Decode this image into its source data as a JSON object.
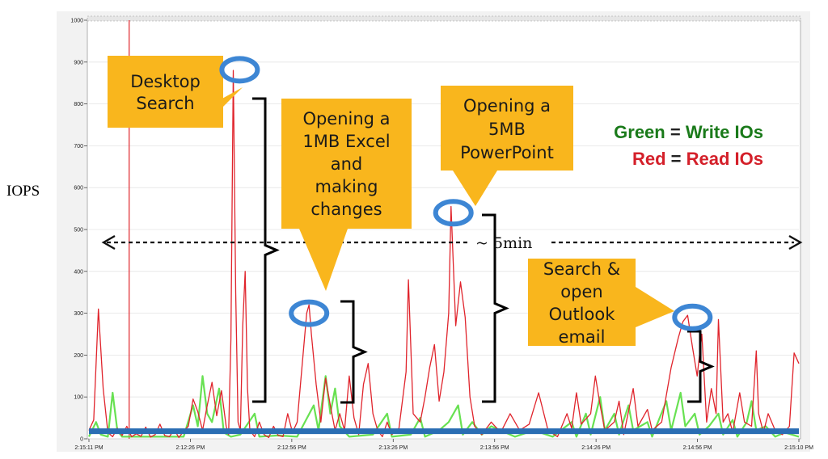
{
  "chart_data": {
    "type": "line",
    "ylabel": "IOPS",
    "ylim": [
      0,
      1000
    ],
    "yticks": [
      0,
      100,
      200,
      300,
      400,
      500,
      600,
      700,
      800,
      900,
      1000
    ],
    "xticks": [
      "2:15:11 PM",
      "2:12:26 PM",
      "2:12:56 PM",
      "2:13:26 PM",
      "2:13:56 PM",
      "2:14:26 PM",
      "2:14:56 PM",
      "2:15:10 PM"
    ],
    "xrange": [
      0,
      300
    ],
    "grid": true,
    "marker_line_t": 17,
    "baseline_value": 18,
    "series": [
      {
        "name": "Read IOs",
        "color": "#e0242c",
        "points": [
          [
            0,
            20
          ],
          [
            2,
            45
          ],
          [
            4,
            310
          ],
          [
            6,
            120
          ],
          [
            8,
            15
          ],
          [
            10,
            5
          ],
          [
            12,
            25
          ],
          [
            14,
            8
          ],
          [
            16,
            30
          ],
          [
            18,
            5
          ],
          [
            20,
            12
          ],
          [
            22,
            6
          ],
          [
            24,
            28
          ],
          [
            26,
            4
          ],
          [
            28,
            10
          ],
          [
            30,
            35
          ],
          [
            32,
            8
          ],
          [
            34,
            5
          ],
          [
            36,
            22
          ],
          [
            38,
            3
          ],
          [
            40,
            18
          ],
          [
            42,
            30
          ],
          [
            44,
            95
          ],
          [
            46,
            65
          ],
          [
            48,
            20
          ],
          [
            50,
            80
          ],
          [
            52,
            135
          ],
          [
            54,
            55
          ],
          [
            56,
            115
          ],
          [
            58,
            30
          ],
          [
            59,
            10
          ],
          [
            60,
            240
          ],
          [
            61,
            880
          ],
          [
            62,
            350
          ],
          [
            63,
            40
          ],
          [
            64,
            20
          ],
          [
            65,
            270
          ],
          [
            66,
            400
          ],
          [
            67,
            120
          ],
          [
            68,
            20
          ],
          [
            70,
            5
          ],
          [
            72,
            40
          ],
          [
            74,
            10
          ],
          [
            76,
            3
          ],
          [
            78,
            30
          ],
          [
            80,
            8
          ],
          [
            82,
            5
          ],
          [
            84,
            60
          ],
          [
            86,
            15
          ],
          [
            88,
            40
          ],
          [
            90,
            170
          ],
          [
            92,
            300
          ],
          [
            93,
            320
          ],
          [
            94,
            250
          ],
          [
            96,
            130
          ],
          [
            98,
            40
          ],
          [
            100,
            145
          ],
          [
            102,
            80
          ],
          [
            104,
            20
          ],
          [
            106,
            60
          ],
          [
            108,
            20
          ],
          [
            110,
            150
          ],
          [
            112,
            50
          ],
          [
            114,
            10
          ],
          [
            116,
            130
          ],
          [
            118,
            180
          ],
          [
            120,
            60
          ],
          [
            122,
            20
          ],
          [
            124,
            5
          ],
          [
            126,
            40
          ],
          [
            128,
            10
          ],
          [
            131,
            25
          ],
          [
            134,
            160
          ],
          [
            135,
            380
          ],
          [
            137,
            60
          ],
          [
            140,
            40
          ],
          [
            142,
            100
          ],
          [
            144,
            170
          ],
          [
            146,
            225
          ],
          [
            148,
            90
          ],
          [
            150,
            160
          ],
          [
            152,
            300
          ],
          [
            153,
            555
          ],
          [
            155,
            270
          ],
          [
            157,
            375
          ],
          [
            159,
            290
          ],
          [
            161,
            100
          ],
          [
            163,
            30
          ],
          [
            166,
            10
          ],
          [
            170,
            40
          ],
          [
            174,
            15
          ],
          [
            178,
            60
          ],
          [
            182,
            20
          ],
          [
            186,
            35
          ],
          [
            190,
            110
          ],
          [
            194,
            20
          ],
          [
            198,
            5
          ],
          [
            202,
            60
          ],
          [
            204,
            25
          ],
          [
            206,
            110
          ],
          [
            208,
            35
          ],
          [
            212,
            60
          ],
          [
            214,
            150
          ],
          [
            216,
            80
          ],
          [
            218,
            20
          ],
          [
            222,
            40
          ],
          [
            224,
            90
          ],
          [
            226,
            10
          ],
          [
            230,
            120
          ],
          [
            232,
            30
          ],
          [
            236,
            70
          ],
          [
            238,
            20
          ],
          [
            242,
            40
          ],
          [
            246,
            170
          ],
          [
            249,
            240
          ],
          [
            251,
            280
          ],
          [
            253,
            295
          ],
          [
            255,
            220
          ],
          [
            257,
            150
          ],
          [
            259,
            250
          ],
          [
            261,
            40
          ],
          [
            263,
            120
          ],
          [
            265,
            60
          ],
          [
            266,
            285
          ],
          [
            268,
            40
          ],
          [
            270,
            60
          ],
          [
            272,
            15
          ],
          [
            275,
            110
          ],
          [
            277,
            40
          ],
          [
            280,
            30
          ],
          [
            282,
            210
          ],
          [
            283,
            60
          ],
          [
            285,
            15
          ],
          [
            287,
            60
          ],
          [
            290,
            20
          ],
          [
            293,
            10
          ],
          [
            296,
            30
          ],
          [
            298,
            205
          ],
          [
            300,
            180
          ]
        ]
      },
      {
        "name": "Write IOs",
        "color": "#4ddc34",
        "points": [
          [
            0,
            5
          ],
          [
            3,
            40
          ],
          [
            5,
            10
          ],
          [
            8,
            5
          ],
          [
            10,
            110
          ],
          [
            12,
            20
          ],
          [
            14,
            5
          ],
          [
            20,
            5
          ],
          [
            30,
            5
          ],
          [
            40,
            5
          ],
          [
            44,
            80
          ],
          [
            46,
            30
          ],
          [
            48,
            150
          ],
          [
            50,
            60
          ],
          [
            52,
            40
          ],
          [
            55,
            120
          ],
          [
            57,
            15
          ],
          [
            60,
            5
          ],
          [
            64,
            10
          ],
          [
            70,
            60
          ],
          [
            72,
            5
          ],
          [
            80,
            8
          ],
          [
            88,
            5
          ],
          [
            95,
            80
          ],
          [
            97,
            20
          ],
          [
            100,
            150
          ],
          [
            102,
            60
          ],
          [
            104,
            120
          ],
          [
            106,
            30
          ],
          [
            110,
            5
          ],
          [
            120,
            10
          ],
          [
            126,
            60
          ],
          [
            128,
            5
          ],
          [
            136,
            10
          ],
          [
            140,
            50
          ],
          [
            142,
            5
          ],
          [
            148,
            20
          ],
          [
            152,
            40
          ],
          [
            156,
            80
          ],
          [
            158,
            10
          ],
          [
            162,
            40
          ],
          [
            166,
            10
          ],
          [
            170,
            30
          ],
          [
            180,
            5
          ],
          [
            188,
            20
          ],
          [
            196,
            5
          ],
          [
            204,
            40
          ],
          [
            206,
            5
          ],
          [
            210,
            60
          ],
          [
            212,
            10
          ],
          [
            216,
            100
          ],
          [
            218,
            20
          ],
          [
            222,
            60
          ],
          [
            224,
            10
          ],
          [
            228,
            80
          ],
          [
            230,
            20
          ],
          [
            236,
            40
          ],
          [
            238,
            5
          ],
          [
            244,
            90
          ],
          [
            246,
            20
          ],
          [
            250,
            110
          ],
          [
            252,
            30
          ],
          [
            256,
            60
          ],
          [
            258,
            10
          ],
          [
            262,
            30
          ],
          [
            266,
            60
          ],
          [
            268,
            10
          ],
          [
            272,
            45
          ],
          [
            274,
            5
          ],
          [
            278,
            40
          ],
          [
            280,
            90
          ],
          [
            282,
            20
          ],
          [
            286,
            30
          ],
          [
            290,
            5
          ],
          [
            294,
            15
          ],
          [
            300,
            5
          ]
        ]
      }
    ],
    "annotations": [
      {
        "text": [
          "Desktop",
          "Search"
        ],
        "target": [
          63,
          870
        ]
      },
      {
        "text": [
          "Opening a",
          "1MB Excel",
          "and",
          "making",
          "changes"
        ],
        "target": [
          93,
          300
        ]
      },
      {
        "text": [
          "Opening a",
          "5MB",
          "PowerPoint"
        ],
        "target": [
          154,
          540
        ]
      },
      {
        "text": [
          "Search &",
          "open",
          "Outlook",
          "email"
        ],
        "target": [
          255,
          290
        ]
      }
    ],
    "duration_label": "~ 5min",
    "legend": [
      {
        "color_name": "Green",
        "eq": " = ",
        "series_name": "Write IOs",
        "color": "#1a7a1a"
      },
      {
        "color_name": "Red",
        "eq": " = ",
        "series_name": "Read IOs",
        "color": "#d4202a"
      }
    ]
  }
}
